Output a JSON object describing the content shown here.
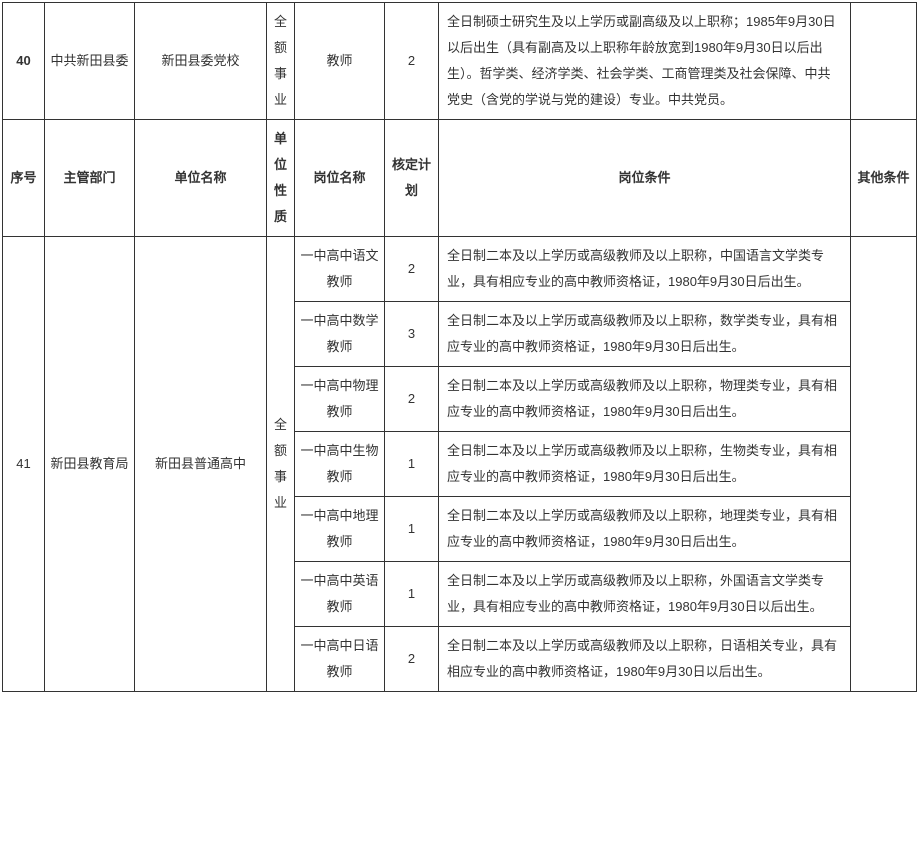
{
  "styling": {
    "border_color": "#333333",
    "text_color": "#333333",
    "background_color": "#ffffff",
    "font_size": 13,
    "line_height": 2.0,
    "col_widths": {
      "seq": 42,
      "dept": 90,
      "unit": 132,
      "nature": 28,
      "post": 90,
      "quota": 54,
      "req": 412,
      "other": 66
    }
  },
  "headers": {
    "seq": "序号",
    "dept": "主管部门",
    "unit": "单位名称",
    "nature": "单位性质",
    "post": "岗位名称",
    "quota": "核定计划",
    "req": "岗位条件",
    "other": "其他条件"
  },
  "row40": {
    "seq": "40",
    "dept": "中共新田县委",
    "unit": "新田县委党校",
    "nature": "全额事业",
    "post": "教师",
    "quota": "2",
    "req": "全日制硕士研究生及以上学历或副高级及以上职称；1985年9月30日以后出生（具有副高及以上职称年龄放宽到1980年9月30日以后出生）。哲学类、经济学类、社会学类、工商管理类及社会保障、中共党史（含党的学说与党的建设）专业。中共党员。",
    "other": ""
  },
  "row41": {
    "seq": "41",
    "dept": "新田县教育局",
    "unit": "新田县普通高中",
    "nature": "全额事业",
    "other": "",
    "posts": {
      "p0": {
        "name": "一中高中语文教师",
        "quota": "2",
        "req": "全日制二本及以上学历或高级教师及以上职称，中国语言文学类专业，具有相应专业的高中教师资格证，1980年9月30日后出生。"
      },
      "p1": {
        "name": "一中高中数学教师",
        "quota": "3",
        "req": "全日制二本及以上学历或高级教师及以上职称，数学类专业，具有相应专业的高中教师资格证，1980年9月30日后出生。"
      },
      "p2": {
        "name": "一中高中物理教师",
        "quota": "2",
        "req": "全日制二本及以上学历或高级教师及以上职称，物理类专业，具有相应专业的高中教师资格证，1980年9月30日后出生。"
      },
      "p3": {
        "name": "一中高中生物教师",
        "quota": "1",
        "req": "全日制二本及以上学历或高级教师及以上职称，生物类专业，具有相应专业的高中教师资格证，1980年9月30日后出生。"
      },
      "p4": {
        "name": "一中高中地理教师",
        "quota": "1",
        "req": "全日制二本及以上学历或高级教师及以上职称，地理类专业，具有相应专业的高中教师资格证，1980年9月30日后出生。"
      },
      "p5": {
        "name": "一中高中英语教师",
        "quota": "1",
        "req": "全日制二本及以上学历或高级教师及以上职称，外国语言文学类专业，具有相应专业的高中教师资格证，1980年9月30日以后出生。"
      },
      "p6": {
        "name": "一中高中日语教师",
        "quota": "2",
        "req": "全日制二本及以上学历或高级教师及以上职称，日语相关专业，具有相应专业的高中教师资格证，1980年9月30日以后出生。"
      }
    }
  }
}
